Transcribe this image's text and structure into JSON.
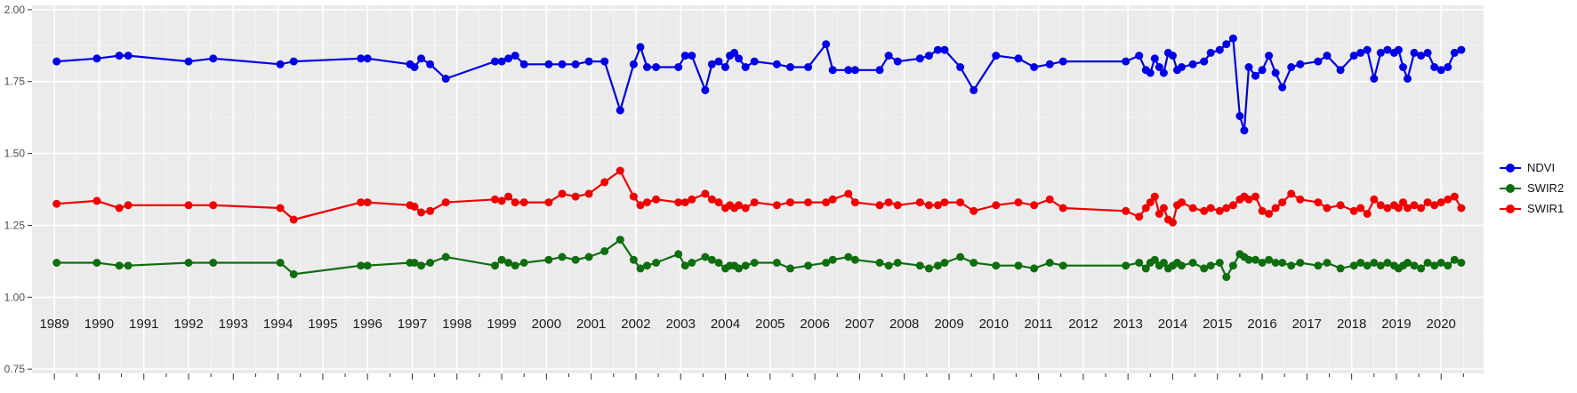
{
  "chart_data": {
    "type": "line",
    "title": "",
    "xlabel": "",
    "ylabel": "",
    "panel_background": "#EBEBEB",
    "grid_color": "#FFFFFF",
    "axis_tick_color": "#333333",
    "x_label_color": "#1C1C1C",
    "y_label_color": "#4D4D4D",
    "y_axis": {
      "ylim": [
        0.75,
        2.0
      ],
      "tick_values": [
        2.0,
        1.75,
        1.5,
        1.25,
        1.0,
        0.75
      ],
      "tick_labels": [
        "2.00",
        "1.75",
        "1.50",
        "1.25",
        "1.00",
        "0.75"
      ]
    },
    "x_axis": {
      "tick_years": [
        1989,
        1990,
        1991,
        1992,
        1993,
        1994,
        1995,
        1996,
        1997,
        1998,
        1999,
        2000,
        2001,
        2002,
        2003,
        2004,
        2005,
        2006,
        2007,
        2008,
        2009,
        2010,
        2011,
        2012,
        2013,
        2014,
        2015,
        2016,
        2017,
        2018,
        2019,
        2020
      ]
    },
    "legend": {
      "position": "right",
      "entries": [
        "NDVI",
        "SWIR2",
        "SWIR1"
      ]
    },
    "x": [
      1989.05,
      1989.95,
      1990.45,
      1990.65,
      1992.0,
      1992.55,
      1994.05,
      1994.35,
      1995.85,
      1996.0,
      1996.95,
      1997.05,
      1997.2,
      1997.4,
      1997.75,
      1998.85,
      1999.0,
      1999.15,
      1999.3,
      1999.5,
      2000.05,
      2000.35,
      2000.65,
      2000.95,
      2001.3,
      2001.65,
      2001.95,
      2002.1,
      2002.25,
      2002.45,
      2002.95,
      2003.1,
      2003.25,
      2003.55,
      2003.7,
      2003.85,
      2004.0,
      2004.1,
      2004.2,
      2004.3,
      2004.45,
      2004.65,
      2005.15,
      2005.45,
      2005.85,
      2006.25,
      2006.4,
      2006.75,
      2006.9,
      2007.45,
      2007.65,
      2007.85,
      2008.35,
      2008.55,
      2008.75,
      2008.9,
      2009.25,
      2009.55,
      2010.05,
      2010.55,
      2010.9,
      2011.25,
      2011.55,
      2012.95,
      2013.25,
      2013.4,
      2013.5,
      2013.6,
      2013.7,
      2013.8,
      2013.9,
      2014.0,
      2014.1,
      2014.2,
      2014.45,
      2014.7,
      2014.85,
      2015.05,
      2015.2,
      2015.35,
      2015.5,
      2015.6,
      2015.7,
      2015.85,
      2016.0,
      2016.15,
      2016.3,
      2016.45,
      2016.65,
      2016.85,
      2017.25,
      2017.45,
      2017.75,
      2018.05,
      2018.2,
      2018.35,
      2018.5,
      2018.65,
      2018.8,
      2018.95,
      2019.05,
      2019.15,
      2019.25,
      2019.4,
      2019.55,
      2019.7,
      2019.85,
      2020.0,
      2020.15,
      2020.3,
      2020.45
    ],
    "series": [
      {
        "name": "NDVI",
        "color": "#0000E6",
        "values": [
          1.82,
          1.83,
          1.84,
          1.84,
          1.82,
          1.83,
          1.81,
          1.82,
          1.83,
          1.83,
          1.81,
          1.8,
          1.83,
          1.81,
          1.76,
          1.82,
          1.82,
          1.83,
          1.84,
          1.81,
          1.81,
          1.81,
          1.81,
          1.82,
          1.82,
          1.65,
          1.81,
          1.87,
          1.8,
          1.8,
          1.8,
          1.84,
          1.84,
          1.72,
          1.81,
          1.82,
          1.8,
          1.84,
          1.85,
          1.83,
          1.8,
          1.82,
          1.81,
          1.8,
          1.8,
          1.88,
          1.79,
          1.79,
          1.79,
          1.79,
          1.84,
          1.82,
          1.83,
          1.84,
          1.86,
          1.86,
          1.8,
          1.72,
          1.84,
          1.83,
          1.8,
          1.81,
          1.82,
          1.82,
          1.84,
          1.79,
          1.78,
          1.83,
          1.8,
          1.78,
          1.85,
          1.84,
          1.79,
          1.8,
          1.81,
          1.82,
          1.85,
          1.86,
          1.88,
          1.9,
          1.63,
          1.58,
          1.8,
          1.77,
          1.79,
          1.84,
          1.78,
          1.73,
          1.8,
          1.81,
          1.82,
          1.84,
          1.79,
          1.84,
          1.85,
          1.86,
          1.76,
          1.85,
          1.86,
          1.85,
          1.86,
          1.8,
          1.76,
          1.85,
          1.84,
          1.85,
          1.8,
          1.79,
          1.8,
          1.85,
          1.86
        ]
      },
      {
        "name": "SWIR2",
        "color": "#0F6E0F",
        "values": [
          1.12,
          1.12,
          1.11,
          1.11,
          1.12,
          1.12,
          1.12,
          1.08,
          1.11,
          1.11,
          1.12,
          1.12,
          1.11,
          1.12,
          1.14,
          1.11,
          1.13,
          1.12,
          1.11,
          1.12,
          1.13,
          1.14,
          1.13,
          1.14,
          1.16,
          1.2,
          1.13,
          1.1,
          1.11,
          1.12,
          1.15,
          1.11,
          1.12,
          1.14,
          1.13,
          1.12,
          1.1,
          1.11,
          1.11,
          1.1,
          1.11,
          1.12,
          1.12,
          1.1,
          1.11,
          1.12,
          1.13,
          1.14,
          1.13,
          1.12,
          1.11,
          1.12,
          1.11,
          1.1,
          1.11,
          1.12,
          1.14,
          1.12,
          1.11,
          1.11,
          1.1,
          1.12,
          1.11,
          1.11,
          1.12,
          1.1,
          1.12,
          1.13,
          1.11,
          1.12,
          1.1,
          1.11,
          1.12,
          1.11,
          1.12,
          1.1,
          1.11,
          1.12,
          1.07,
          1.11,
          1.15,
          1.14,
          1.13,
          1.13,
          1.12,
          1.13,
          1.12,
          1.12,
          1.11,
          1.12,
          1.11,
          1.12,
          1.1,
          1.11,
          1.12,
          1.11,
          1.12,
          1.11,
          1.12,
          1.11,
          1.1,
          1.11,
          1.12,
          1.11,
          1.1,
          1.12,
          1.11,
          1.12,
          1.11,
          1.13,
          1.12
        ]
      },
      {
        "name": "SWIR1",
        "color": "#F00000",
        "values": [
          1.325,
          1.335,
          1.31,
          1.32,
          1.32,
          1.32,
          1.31,
          1.27,
          1.33,
          1.33,
          1.32,
          1.315,
          1.295,
          1.3,
          1.33,
          1.34,
          1.335,
          1.35,
          1.33,
          1.33,
          1.33,
          1.36,
          1.35,
          1.36,
          1.4,
          1.44,
          1.35,
          1.32,
          1.33,
          1.34,
          1.33,
          1.33,
          1.34,
          1.36,
          1.34,
          1.33,
          1.31,
          1.32,
          1.31,
          1.32,
          1.31,
          1.33,
          1.32,
          1.33,
          1.33,
          1.33,
          1.34,
          1.36,
          1.33,
          1.32,
          1.33,
          1.32,
          1.33,
          1.32,
          1.32,
          1.33,
          1.33,
          1.3,
          1.32,
          1.33,
          1.32,
          1.34,
          1.31,
          1.3,
          1.28,
          1.31,
          1.33,
          1.35,
          1.29,
          1.31,
          1.27,
          1.26,
          1.32,
          1.33,
          1.31,
          1.3,
          1.31,
          1.3,
          1.31,
          1.32,
          1.34,
          1.35,
          1.34,
          1.35,
          1.3,
          1.29,
          1.31,
          1.33,
          1.36,
          1.34,
          1.33,
          1.31,
          1.32,
          1.3,
          1.31,
          1.29,
          1.34,
          1.32,
          1.31,
          1.32,
          1.31,
          1.33,
          1.31,
          1.32,
          1.31,
          1.33,
          1.32,
          1.33,
          1.34,
          1.35,
          1.31
        ]
      }
    ]
  }
}
